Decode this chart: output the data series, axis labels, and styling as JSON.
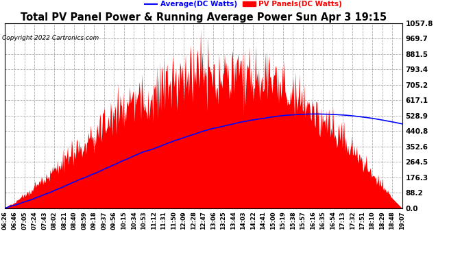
{
  "title": "Total PV Panel Power & Running Average Power Sun Apr 3 19:15",
  "copyright": "Copyright 2022 Cartronics.com",
  "legend_avg": "Average(DC Watts)",
  "legend_pv": "PV Panels(DC Watts)",
  "yticks": [
    0.0,
    88.2,
    176.3,
    264.5,
    352.6,
    440.8,
    528.9,
    617.1,
    705.2,
    793.4,
    881.5,
    969.7,
    1057.8
  ],
  "ymax": 1057.8,
  "ymin": 0.0,
  "background_color": "#ffffff",
  "plot_bg_color": "#ffffff",
  "grid_color": "#999999",
  "pv_color": "#ff0000",
  "avg_color": "#0000ff",
  "title_color": "#000000",
  "copyright_color": "#000000",
  "xtick_labels": [
    "06:26",
    "06:46",
    "07:05",
    "07:24",
    "07:43",
    "08:02",
    "08:21",
    "08:40",
    "08:59",
    "09:18",
    "09:37",
    "09:56",
    "10:15",
    "10:34",
    "10:53",
    "11:12",
    "11:31",
    "11:50",
    "12:09",
    "12:28",
    "12:47",
    "13:06",
    "13:25",
    "13:44",
    "14:03",
    "14:22",
    "14:41",
    "15:00",
    "15:19",
    "15:38",
    "15:57",
    "16:16",
    "16:35",
    "16:54",
    "17:13",
    "17:32",
    "17:51",
    "18:10",
    "18:29",
    "18:48",
    "19:07"
  ]
}
